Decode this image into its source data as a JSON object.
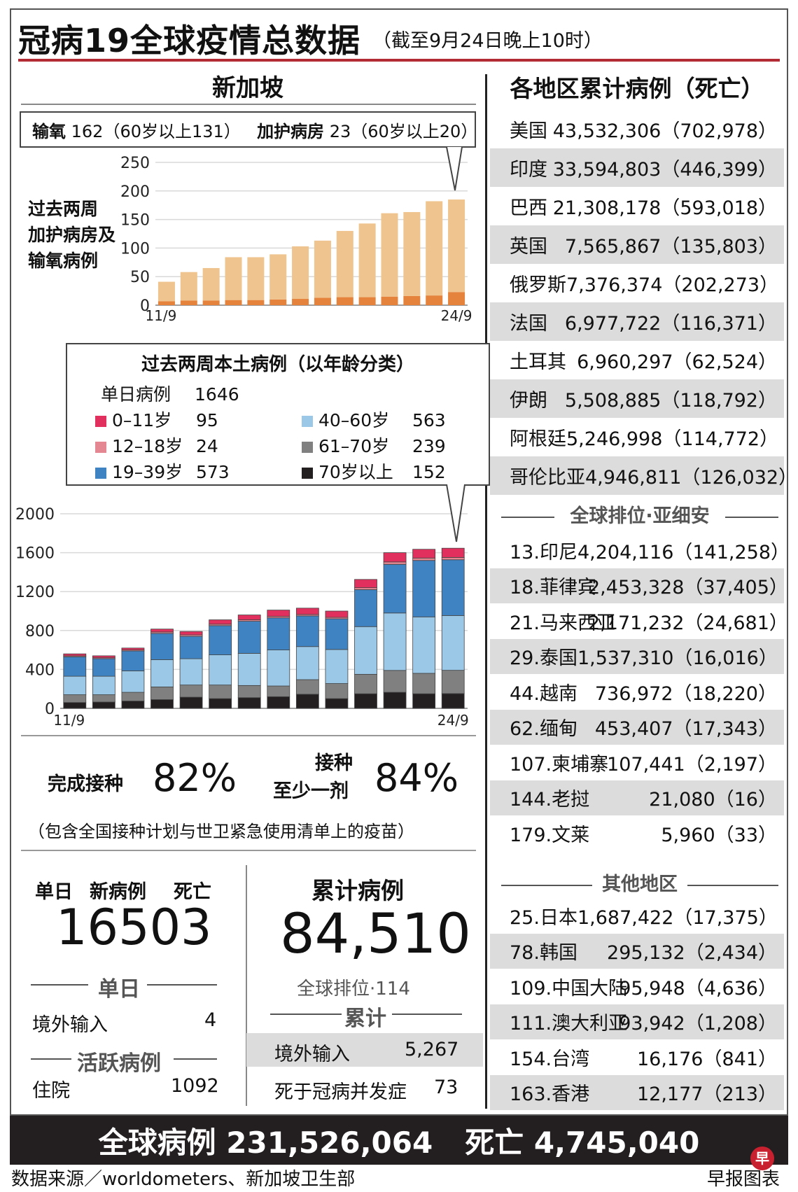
{
  "title": "冠病19全球疫情总数据",
  "subtitle": "（截至9月24日晚上10时）",
  "sg": {
    "heading": "新加坡",
    "legend": {
      "oxygen_label": "输氧",
      "oxygen_value": "162（60岁以上131）",
      "icu_label": "加护病房",
      "icu_value": "23（60岁以上20）"
    },
    "chart1_label_lines": [
      "过去两周",
      "加护病房及",
      "输氧病例"
    ],
    "age_box": {
      "title": "过去两周本土病例（以年龄分类）",
      "daily_label": "单日病例",
      "daily_value": "1646",
      "groups": [
        {
          "label": "0–11岁",
          "value": "95"
        },
        {
          "label": "12–18岁",
          "value": "24"
        },
        {
          "label": "19–39岁",
          "value": "573"
        },
        {
          "label": "40–60岁",
          "value": "563"
        },
        {
          "label": "61–70岁",
          "value": "239"
        },
        {
          "label": "70岁以上",
          "value": "152"
        }
      ]
    },
    "vaccine": {
      "full_label": "完成接种",
      "full_value": "82%",
      "dose_label_1": "接种",
      "dose_label_2": "至少一剂",
      "dose_value": "84%",
      "note": "（包含全国接种计划与世卫紧急使用清单上的疫苗）"
    },
    "daily": {
      "label_day": "单日",
      "label_new": "新病例",
      "label_death": "死亡",
      "new_value": "1650",
      "death_value": "3",
      "sub_daily": "单日",
      "imported_label": "境外输入",
      "imported_value": "4",
      "active_label": "活跃病例",
      "hosp_label": "住院",
      "hosp_value": "1092"
    },
    "cumulative": {
      "label": "累计病例",
      "value": "84,510",
      "rank": "全球排位·114",
      "sub": "累计",
      "imported_label": "境外输入",
      "imported_value": "5,267",
      "death_label": "死于冠病并发症",
      "death_value": "73"
    }
  },
  "regions": {
    "heading": "各地区累计病例（死亡）",
    "top": [
      {
        "name": "美国",
        "value": "43,532,306（702,978）"
      },
      {
        "name": "印度",
        "value": "33,594,803（446,399）"
      },
      {
        "name": "巴西",
        "value": "21,308,178（593,018）"
      },
      {
        "name": "英国",
        "value": "7,565,867（135,803）"
      },
      {
        "name": "俄罗斯",
        "value": "7,376,374（202,273）"
      },
      {
        "name": "法国",
        "value": "6,977,722（116,371）"
      },
      {
        "name": "土耳其",
        "value": "6,960,297（62,524）"
      },
      {
        "name": "伊朗",
        "value": "5,508,885（118,792）"
      },
      {
        "name": "阿根廷",
        "value": "5,246,998（114,772）"
      },
      {
        "name": "哥伦比亚",
        "value": "4,946,811（126,032）"
      }
    ],
    "asean_heading": "全球排位·亚细安",
    "asean": [
      {
        "name": "13.印尼",
        "value": "4,204,116（141,258）"
      },
      {
        "name": "18.菲律宾",
        "value": "2,453,328（37,405）"
      },
      {
        "name": "21.马来西亚",
        "value": "2,171,232（24,681）"
      },
      {
        "name": "29.泰国",
        "value": "1,537,310（16,016）"
      },
      {
        "name": "44.越南",
        "value": "736,972（18,220）"
      },
      {
        "name": "62.缅甸",
        "value": "453,407（17,343）"
      },
      {
        "name": "107.柬埔寨",
        "value": "107,441（2,197）"
      },
      {
        "name": "144.老挝",
        "value": "21,080（16）"
      },
      {
        "name": "179.文莱",
        "value": "5,960（33）"
      }
    ],
    "other_heading": "其他地区",
    "other": [
      {
        "name": "25.日本",
        "value": "1,687,422（17,375）"
      },
      {
        "name": "78.韩国",
        "value": "295,132（2,434）"
      },
      {
        "name": "109.中国大陆",
        "value": "95,948（4,636）"
      },
      {
        "name": "111.澳大利亚",
        "value": "93,942（1,208）"
      },
      {
        "name": "154.台湾",
        "value": "16,176（841）"
      },
      {
        "name": "163.香港",
        "value": "12,177（213）"
      }
    ]
  },
  "global": {
    "cases_label": "全球病例",
    "cases_value": "231,526,064",
    "deaths_label": "死亡",
    "deaths_value": "4,745,040"
  },
  "footer": {
    "source": "数据来源／worldometers、新加坡卫生部",
    "credit": "早报图表"
  },
  "colors": {
    "oxygen": "#efc48e",
    "icu": "#e5823b",
    "age_0_11": "#e12f5e",
    "age_12_18": "#e58793",
    "age_19_39": "#3f83c3",
    "age_40_60": "#9cc8e8",
    "age_61_70": "#808080",
    "age_70_plus": "#231f20",
    "accent_red": "#b22b35"
  },
  "chart_data": [
    {
      "type": "bar",
      "title": "过去两周加护病房及输氧病例",
      "stacked": true,
      "x": [
        "11/9",
        "12/9",
        "13/9",
        "14/9",
        "15/9",
        "16/9",
        "17/9",
        "18/9",
        "19/9",
        "20/9",
        "21/9",
        "22/9",
        "23/9",
        "24/9"
      ],
      "tick_labels": [
        "11/9",
        "24/9"
      ],
      "ylim": [
        0,
        250
      ],
      "yticks": [
        0,
        50,
        100,
        150,
        200,
        250
      ],
      "series": [
        {
          "name": "加护病房",
          "values": [
            7,
            8,
            8,
            9,
            9,
            10,
            11,
            13,
            14,
            14,
            15,
            16,
            17,
            23
          ]
        },
        {
          "name": "输氧",
          "values": [
            34,
            50,
            57,
            75,
            75,
            79,
            92,
            100,
            116,
            129,
            146,
            147,
            165,
            162
          ]
        }
      ]
    },
    {
      "type": "bar",
      "title": "过去两周本土病例（以年龄分类）",
      "stacked": true,
      "x": [
        "11/9",
        "12/9",
        "13/9",
        "14/9",
        "15/9",
        "16/9",
        "17/9",
        "18/9",
        "19/9",
        "20/9",
        "21/9",
        "22/9",
        "23/9",
        "24/9"
      ],
      "tick_labels": [
        "11/9",
        "24/9"
      ],
      "ylim": [
        0,
        2000
      ],
      "yticks": [
        0,
        400,
        800,
        1200,
        1600,
        2000
      ],
      "series": [
        {
          "name": "70岁以上",
          "values": [
            60,
            65,
            75,
            90,
            115,
            100,
            110,
            120,
            145,
            100,
            150,
            165,
            150,
            152
          ]
        },
        {
          "name": "61–70岁",
          "values": [
            80,
            75,
            90,
            130,
            125,
            140,
            125,
            110,
            150,
            155,
            200,
            225,
            210,
            239
          ]
        },
        {
          "name": "40–60岁",
          "values": [
            190,
            190,
            220,
            280,
            270,
            310,
            330,
            370,
            340,
            350,
            490,
            590,
            580,
            563
          ]
        },
        {
          "name": "19–39岁",
          "values": [
            200,
            180,
            205,
            270,
            230,
            300,
            330,
            330,
            315,
            315,
            380,
            500,
            580,
            573
          ]
        },
        {
          "name": "12–18岁",
          "values": [
            10,
            10,
            10,
            15,
            15,
            15,
            15,
            15,
            15,
            15,
            20,
            25,
            25,
            24
          ]
        },
        {
          "name": "0–11岁",
          "values": [
            20,
            20,
            20,
            30,
            35,
            45,
            50,
            65,
            65,
            65,
            85,
            95,
            90,
            95
          ]
        }
      ]
    }
  ]
}
